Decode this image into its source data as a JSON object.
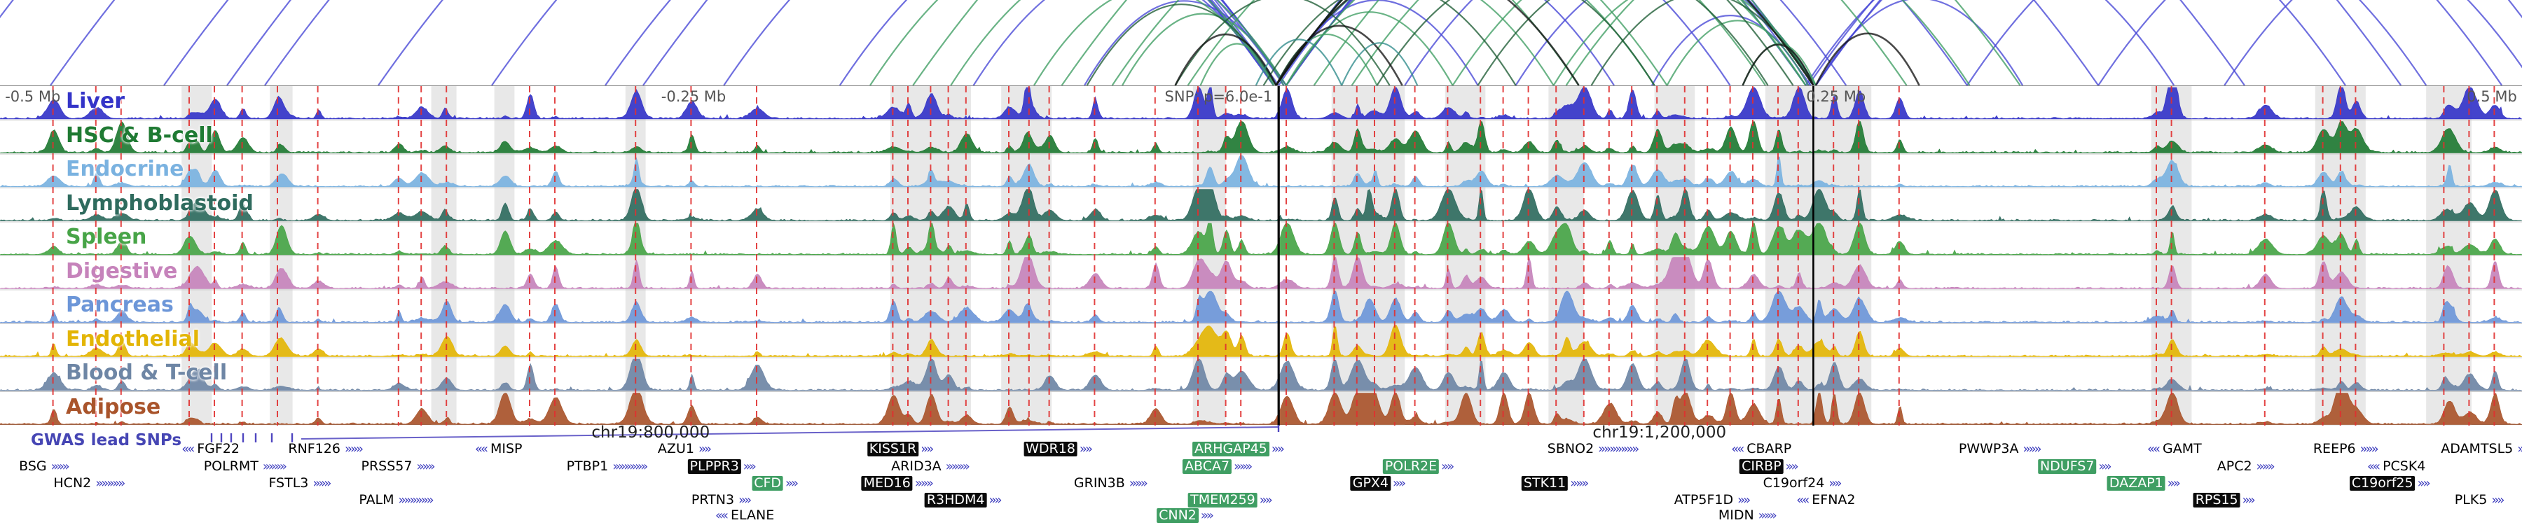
{
  "chart_data": {
    "type": "genome-browser-tracks",
    "description": "Epigenomic signal tracks with chromatin interaction arcs around a GWAS lead SNP on chr19",
    "gwas_label": "GWAS lead SNPs",
    "ruler": {
      "labels": [
        {
          "text": "-0.5 Mb",
          "x": 0.002,
          "align": "l"
        },
        {
          "text": "-0.25 Mb",
          "x": 0.275,
          "align": "c"
        },
        {
          "text": "SNP: p=6.0e-1",
          "x": 0.5045,
          "align": "r"
        },
        {
          "text": "0.25 Mb",
          "x": 0.728,
          "align": "c"
        },
        {
          "text": "0.5 Mb",
          "x": 0.998,
          "align": "r"
        }
      ],
      "color": "#555555"
    },
    "axis_positions": [
      {
        "text": "chr19:800,000",
        "x": 0.258
      },
      {
        "text": "chr19:1,200,000",
        "x": 0.658
      }
    ],
    "snp_lines": [
      {
        "x": 0.507,
        "w": 3.2
      },
      {
        "x": 0.719,
        "w": 2.6
      }
    ],
    "tracks": [
      {
        "label": "Liver",
        "color": "#3434c8",
        "weight": 1.0
      },
      {
        "label": "HSC & B-cell",
        "color": "#1f7a33",
        "weight": 0.95
      },
      {
        "label": "Endocrine",
        "color": "#7ab2e0",
        "weight": 0.75
      },
      {
        "label": "Lymphoblastoid",
        "color": "#2f6b5e",
        "weight": 0.9
      },
      {
        "label": "Spleen",
        "color": "#47a447",
        "weight": 0.85
      },
      {
        "label": "Digestive",
        "color": "#c683bb",
        "weight": 0.8
      },
      {
        "label": "Pancreas",
        "color": "#6c96d8",
        "weight": 0.7
      },
      {
        "label": "Endothelial",
        "color": "#e3b505",
        "weight": 0.55
      },
      {
        "label": "Blood & T-cell",
        "color": "#6e86a5",
        "weight": 0.8
      },
      {
        "label": "Adipose",
        "color": "#a9542b",
        "weight": 1.0
      }
    ],
    "red_lines": [
      0.021,
      0.038,
      0.048,
      0.075,
      0.085,
      0.096,
      0.11,
      0.126,
      0.158,
      0.167,
      0.177,
      0.21,
      0.22,
      0.252,
      0.274,
      0.3,
      0.354,
      0.36,
      0.369,
      0.376,
      0.383,
      0.4,
      0.408,
      0.416,
      0.434,
      0.458,
      0.475,
      0.486,
      0.492,
      0.51,
      0.529,
      0.538,
      0.545,
      0.553,
      0.561,
      0.574,
      0.587,
      0.596,
      0.606,
      0.617,
      0.628,
      0.638,
      0.647,
      0.657,
      0.668,
      0.677,
      0.686,
      0.695,
      0.705,
      0.713,
      0.727,
      0.737,
      0.753,
      0.855,
      0.861,
      0.898,
      0.921,
      0.928,
      0.934,
      0.969,
      0.979,
      0.989
    ],
    "highlight_bands": [
      [
        0.072,
        0.012
      ],
      [
        0.107,
        0.009
      ],
      [
        0.171,
        0.01
      ],
      [
        0.196,
        0.008
      ],
      [
        0.248,
        0.008
      ],
      [
        0.353,
        0.032
      ],
      [
        0.397,
        0.02
      ],
      [
        0.473,
        0.013
      ],
      [
        0.528,
        0.029
      ],
      [
        0.573,
        0.016
      ],
      [
        0.614,
        0.014
      ],
      [
        0.656,
        0.016
      ],
      [
        0.7,
        0.042
      ],
      [
        0.853,
        0.016
      ],
      [
        0.918,
        0.02
      ],
      [
        0.962,
        0.018
      ]
    ],
    "arc_palette": {
      "b": "#4747d6",
      "g": "#3f9e63",
      "d": "#1e5c35",
      "k": "#141414",
      "t": "#2e8b8b"
    },
    "arcs": [
      [
        "b",
        -0.06,
        0.505
      ],
      [
        "b",
        0.02,
        0.507
      ],
      [
        "b",
        0.065,
        0.51
      ],
      [
        "b",
        0.105,
        0.505
      ],
      [
        "b",
        0.15,
        0.51
      ],
      [
        "b",
        0.195,
        0.506
      ],
      [
        "b",
        0.24,
        0.51
      ],
      [
        "b",
        0.287,
        0.505
      ],
      [
        "b",
        0.333,
        0.509
      ],
      [
        "b",
        0.386,
        0.505
      ],
      [
        "b",
        0.43,
        0.509
      ],
      [
        "b",
        -0.02,
        0.718
      ],
      [
        "b",
        0.09,
        0.716
      ],
      [
        "b",
        0.255,
        0.72
      ],
      [
        "b",
        0.506,
        0.586
      ],
      [
        "b",
        0.507,
        0.64
      ],
      [
        "b",
        0.51,
        0.686
      ],
      [
        "b",
        0.506,
        0.732
      ],
      [
        "b",
        0.51,
        0.78
      ],
      [
        "b",
        0.506,
        0.832
      ],
      [
        "b",
        0.51,
        0.89
      ],
      [
        "b",
        0.506,
        0.952
      ],
      [
        "b",
        0.51,
        1.02
      ],
      [
        "b",
        0.72,
        0.802
      ],
      [
        "b",
        0.716,
        0.862
      ],
      [
        "b",
        0.72,
        0.93
      ],
      [
        "b",
        0.717,
        0.992
      ],
      [
        "b",
        0.72,
        1.06
      ],
      [
        "b",
        0.601,
        0.72
      ],
      [
        "b",
        0.655,
        0.717
      ],
      [
        "b",
        0.557,
        0.72
      ],
      [
        "b",
        0.78,
        0.962
      ],
      [
        "b",
        0.832,
        1.005
      ],
      [
        "b",
        0.882,
        1.04
      ],
      [
        "g",
        0.345,
        0.506
      ],
      [
        "g",
        0.377,
        0.51
      ],
      [
        "g",
        0.41,
        0.505
      ],
      [
        "g",
        0.445,
        0.509
      ],
      [
        "g",
        0.476,
        0.505
      ],
      [
        "g",
        0.506,
        0.546
      ],
      [
        "g",
        0.51,
        0.576
      ],
      [
        "g",
        0.506,
        0.616
      ],
      [
        "g",
        0.51,
        0.656
      ],
      [
        "g",
        0.506,
        0.7
      ],
      [
        "g",
        0.536,
        0.719
      ],
      [
        "g",
        0.576,
        0.716
      ],
      [
        "g",
        0.616,
        0.72
      ],
      [
        "g",
        0.661,
        0.717
      ],
      [
        "g",
        0.691,
        0.72
      ],
      [
        "g",
        0.441,
        0.626
      ],
      [
        "g",
        0.471,
        0.661
      ],
      [
        "g",
        0.362,
        0.72
      ],
      [
        "g",
        0.421,
        0.716
      ],
      [
        "g",
        0.506,
        0.756
      ],
      [
        "g",
        0.521,
        0.801
      ],
      [
        "g",
        0.621,
        0.781
      ],
      [
        "d",
        0.431,
        0.506
      ],
      [
        "d",
        0.466,
        0.551
      ],
      [
        "d",
        0.501,
        0.601
      ],
      [
        "d",
        0.546,
        0.656
      ],
      [
        "d",
        0.586,
        0.701
      ],
      [
        "d",
        0.631,
        0.719
      ],
      [
        "d",
        0.506,
        0.711
      ],
      [
        "k",
        0.506,
        0.719
      ],
      [
        "k",
        0.466,
        0.506
      ],
      [
        "k",
        0.506,
        0.556
      ],
      [
        "k",
        0.691,
        0.719
      ],
      [
        "k",
        0.72,
        0.761
      ],
      [
        "k",
        0.506,
        0.626
      ],
      [
        "t",
        0.498,
        0.532
      ],
      [
        "t",
        0.532,
        0.562
      ]
    ],
    "gene_rows_y": [
      24,
      49,
      73,
      97,
      119
    ],
    "genes": [
      {
        "n": "FGF22",
        "r": 0,
        "x": 0.0835,
        "s": "p",
        "a": 2,
        "d": -1
      },
      {
        "n": "RNF126",
        "r": 0,
        "x": 0.1288,
        "s": "p",
        "a": 3,
        "d": 1
      },
      {
        "n": "MISP",
        "r": 0,
        "x": 0.1977,
        "s": "p",
        "a": 2,
        "d": -1
      },
      {
        "n": "AZU1",
        "r": 0,
        "x": 0.2711,
        "s": "p",
        "a": 2,
        "d": 1
      },
      {
        "n": "KISS1R",
        "r": 0,
        "x": 0.3571,
        "s": "k",
        "a": 2,
        "d": 1
      },
      {
        "n": "WDR18",
        "r": 0,
        "x": 0.4196,
        "s": "k",
        "a": 2,
        "d": 1
      },
      {
        "n": "ARHGAP45",
        "r": 0,
        "x": 0.4911,
        "s": "g",
        "a": 2,
        "d": 1
      },
      {
        "n": "SBNO2",
        "r": 0,
        "x": 0.6314,
        "s": "p",
        "a": 7,
        "d": 1
      },
      {
        "n": "CBARP",
        "r": 0,
        "x": 0.6984,
        "s": "p",
        "a": 2,
        "d": -1
      },
      {
        "n": "PWWP3A",
        "r": 0,
        "x": 0.7927,
        "s": "p",
        "a": 3,
        "d": 1
      },
      {
        "n": "GAMT",
        "r": 0,
        "x": 0.8622,
        "s": "p",
        "a": 2,
        "d": -1
      },
      {
        "n": "REEP6",
        "r": 0,
        "x": 0.9298,
        "s": "p",
        "a": 3,
        "d": 1
      },
      {
        "n": "ADAMTSL5",
        "r": 0,
        "x": 0.9841,
        "s": "p",
        "a": 1,
        "d": 1
      },
      {
        "n": "BSG",
        "r": 1,
        "x": 0.0172,
        "s": "p",
        "a": 3,
        "d": 1
      },
      {
        "n": "POLRMT",
        "r": 1,
        "x": 0.0969,
        "s": "p",
        "a": 4,
        "d": 1
      },
      {
        "n": "PRSS57",
        "r": 1,
        "x": 0.1575,
        "s": "p",
        "a": 3,
        "d": 1
      },
      {
        "n": "PTBP1",
        "r": 1,
        "x": 0.2404,
        "s": "p",
        "a": 6,
        "d": 1
      },
      {
        "n": "PLPPR3",
        "r": 1,
        "x": 0.2863,
        "s": "k",
        "a": 2,
        "d": 1
      },
      {
        "n": "ARID3A",
        "r": 1,
        "x": 0.3686,
        "s": "p",
        "a": 4,
        "d": 1
      },
      {
        "n": "ABCA7",
        "r": 1,
        "x": 0.4828,
        "s": "g",
        "a": 3,
        "d": 1
      },
      {
        "n": "POLR2E",
        "r": 1,
        "x": 0.5625,
        "s": "g",
        "a": 2,
        "d": 1
      },
      {
        "n": "CIRBP",
        "r": 1,
        "x": 0.7015,
        "s": "k",
        "a": 2,
        "d": 1
      },
      {
        "n": "NDUFS7",
        "r": 1,
        "x": 0.8227,
        "s": "g",
        "a": 2,
        "d": 1
      },
      {
        "n": "APC2",
        "r": 1,
        "x": 0.8902,
        "s": "p",
        "a": 3,
        "d": 1
      },
      {
        "n": "PCSK4",
        "r": 1,
        "x": 0.9502,
        "s": "p",
        "a": 2,
        "d": -1
      },
      {
        "n": "HCN2",
        "r": 2,
        "x": 0.0351,
        "s": "p",
        "a": 5,
        "d": 1
      },
      {
        "n": "FSTL3",
        "r": 2,
        "x": 0.1186,
        "s": "p",
        "a": 3,
        "d": 1
      },
      {
        "n": "CFD",
        "r": 2,
        "x": 0.3074,
        "s": "g",
        "a": 2,
        "d": 1
      },
      {
        "n": "MED16",
        "r": 2,
        "x": 0.3559,
        "s": "k",
        "a": 3,
        "d": 1
      },
      {
        "n": "GRIN3B",
        "r": 2,
        "x": 0.4401,
        "s": "p",
        "a": 3,
        "d": 1
      },
      {
        "n": "GPX4",
        "r": 2,
        "x": 0.5465,
        "s": "k",
        "a": 2,
        "d": 1
      },
      {
        "n": "STK11",
        "r": 2,
        "x": 0.6167,
        "s": "k",
        "a": 3,
        "d": 1
      },
      {
        "n": "C19orf24",
        "r": 2,
        "x": 0.7143,
        "s": "p",
        "a": 2,
        "d": 1
      },
      {
        "n": "DAZAP1",
        "r": 2,
        "x": 0.8501,
        "s": "g",
        "a": 2,
        "d": 1
      },
      {
        "n": "C19orf25",
        "r": 2,
        "x": 0.9477,
        "s": "k",
        "a": 2,
        "d": 1
      },
      {
        "n": "PALM",
        "r": 3,
        "x": 0.1568,
        "s": "p",
        "a": 6,
        "d": 1
      },
      {
        "n": "PRTN3",
        "r": 3,
        "x": 0.2857,
        "s": "p",
        "a": 2,
        "d": 1
      },
      {
        "n": "R3HDM4",
        "r": 3,
        "x": 0.382,
        "s": "k",
        "a": 2,
        "d": 1
      },
      {
        "n": "TMEM259",
        "r": 3,
        "x": 0.4879,
        "s": "g",
        "a": 2,
        "d": 1
      },
      {
        "n": "ATP5F1D",
        "r": 3,
        "x": 0.6786,
        "s": "p",
        "a": 2,
        "d": 1
      },
      {
        "n": "EFNA2",
        "r": 3,
        "x": 0.724,
        "s": "p",
        "a": 2,
        "d": -1
      },
      {
        "n": "RPS15",
        "r": 3,
        "x": 0.882,
        "s": "k",
        "a": 2,
        "d": 1
      },
      {
        "n": "PLK5",
        "r": 3,
        "x": 0.9828,
        "s": "p",
        "a": 2,
        "d": 1
      },
      {
        "n": "ELANE",
        "r": 4,
        "x": 0.2953,
        "s": "p",
        "a": 2,
        "d": -1
      },
      {
        "n": "CNN2",
        "r": 4,
        "x": 0.47,
        "s": "g",
        "a": 2,
        "d": 1
      },
      {
        "n": "MIDN",
        "r": 4,
        "x": 0.6926,
        "s": "p",
        "a": 3,
        "d": 1
      }
    ],
    "colors": {
      "red_line": "#e03030",
      "band": "#d9d9d9",
      "snp_line": "#000000",
      "gwas": "#4646b4",
      "gene_arrow": "#3a3abd",
      "gene_green": "#3f9e63",
      "gene_black": "#0a0a0a"
    }
  }
}
